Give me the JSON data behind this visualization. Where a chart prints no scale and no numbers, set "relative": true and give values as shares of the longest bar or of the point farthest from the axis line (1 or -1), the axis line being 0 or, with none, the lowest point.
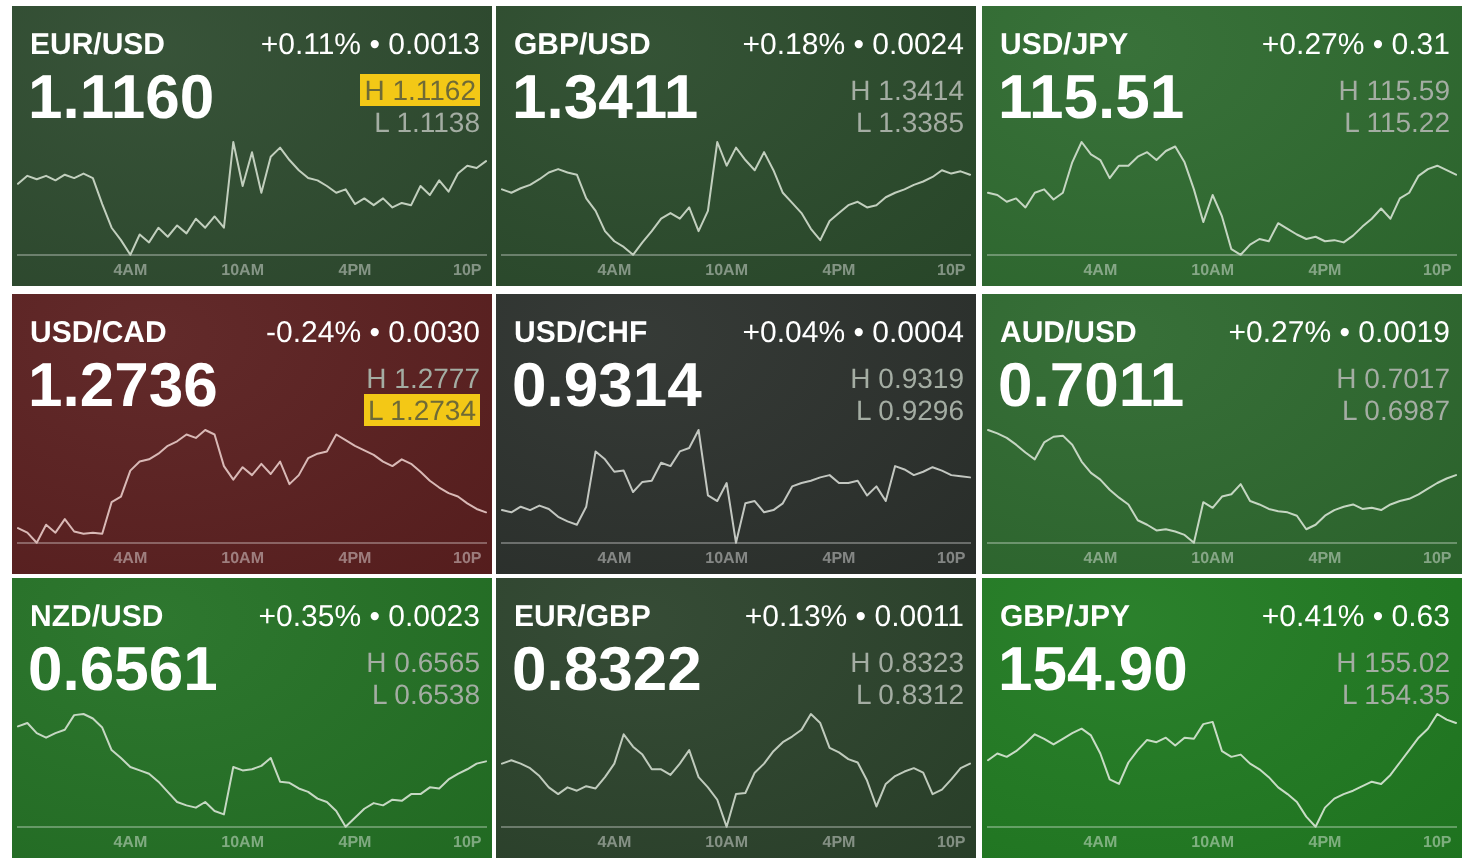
{
  "chart_data": [
    {
      "type": "line",
      "title": "EUR/USD",
      "subtitle": "1.1160",
      "annotations": [
        "+0.11% • 0.0013",
        "H 1.1162",
        "L 1.1138"
      ],
      "relative": true,
      "color": "#c2cfbe",
      "categories": [
        null,
        null,
        null,
        null,
        null,
        null,
        null,
        null,
        null,
        null,
        null,
        null,
        "4AM",
        null,
        null,
        null,
        null,
        null,
        null,
        null,
        null,
        null,
        null,
        null,
        "10AM",
        null,
        null,
        null,
        null,
        null,
        null,
        null,
        null,
        null,
        null,
        null,
        "4PM",
        null,
        null,
        null,
        null,
        null,
        null,
        null,
        null,
        null,
        null,
        null,
        "10P",
        null,
        null
      ],
      "values": [
        0.63,
        0.7,
        0.67,
        0.7,
        0.66,
        0.71,
        0.68,
        0.72,
        0.68,
        0.45,
        0.24,
        0.13,
        0,
        0.18,
        0.11,
        0.24,
        0.16,
        0.26,
        0.19,
        0.32,
        0.24,
        0.34,
        0.24,
        1,
        0.61,
        0.91,
        0.55,
        0.87,
        0.95,
        0.84,
        0.75,
        0.68,
        0.66,
        0.61,
        0.55,
        0.58,
        0.45,
        0.5,
        0.44,
        0.5,
        0.42,
        0.46,
        0.44,
        0.61,
        0.53,
        0.66,
        0.56,
        0.72,
        0.79,
        0.77,
        0.83
      ]
    },
    {
      "type": "line",
      "title": "GBP/USD",
      "subtitle": "1.3411",
      "annotations": [
        "+0.18% • 0.0024",
        "H 1.3414",
        "L 1.3385"
      ],
      "relative": true,
      "color": "#c2cfbe",
      "categories": [
        null,
        null,
        null,
        null,
        null,
        null,
        null,
        null,
        null,
        null,
        null,
        null,
        "4AM",
        null,
        null,
        null,
        null,
        null,
        null,
        null,
        null,
        null,
        null,
        null,
        "10AM",
        null,
        null,
        null,
        null,
        null,
        null,
        null,
        null,
        null,
        null,
        null,
        "4PM",
        null,
        null,
        null,
        null,
        null,
        null,
        null,
        null,
        null,
        null,
        null,
        "10P",
        null,
        null
      ],
      "values": [
        0.58,
        0.55,
        0.59,
        0.62,
        0.67,
        0.73,
        0.76,
        0.73,
        0.71,
        0.5,
        0.39,
        0.21,
        0.12,
        0.07,
        0,
        0.11,
        0.21,
        0.32,
        0.37,
        0.32,
        0.42,
        0.21,
        0.39,
        1,
        0.79,
        0.95,
        0.84,
        0.75,
        0.91,
        0.75,
        0.55,
        0.46,
        0.37,
        0.23,
        0.13,
        0.3,
        0.37,
        0.44,
        0.47,
        0.42,
        0.44,
        0.51,
        0.55,
        0.58,
        0.62,
        0.65,
        0.69,
        0.75,
        0.72,
        0.74,
        0.71
      ]
    },
    {
      "type": "line",
      "title": "USD/JPY",
      "subtitle": "115.51",
      "annotations": [
        "+0.27% • 0.31",
        "H 115.59",
        "L 115.22"
      ],
      "relative": true,
      "color": "#c5d6c2",
      "categories": [
        null,
        null,
        null,
        null,
        null,
        null,
        null,
        null,
        null,
        null,
        null,
        null,
        "4AM",
        null,
        null,
        null,
        null,
        null,
        null,
        null,
        null,
        null,
        null,
        null,
        "10AM",
        null,
        null,
        null,
        null,
        null,
        null,
        null,
        null,
        null,
        null,
        null,
        "4PM",
        null,
        null,
        null,
        null,
        null,
        null,
        null,
        null,
        null,
        null,
        null,
        "10P",
        null,
        null
      ],
      "values": [
        0.55,
        0.53,
        0.47,
        0.5,
        0.42,
        0.55,
        0.58,
        0.49,
        0.55,
        0.82,
        1,
        0.89,
        0.84,
        0.68,
        0.79,
        0.79,
        0.87,
        0.91,
        0.84,
        0.92,
        0.96,
        0.82,
        0.58,
        0.29,
        0.53,
        0.34,
        0.05,
        0,
        0.09,
        0.14,
        0.12,
        0.28,
        0.23,
        0.18,
        0.14,
        0.16,
        0.12,
        0.13,
        0.11,
        0.17,
        0.25,
        0.32,
        0.41,
        0.32,
        0.5,
        0.55,
        0.7,
        0.76,
        0.79,
        0.75,
        0.71
      ]
    },
    {
      "type": "line",
      "title": "USD/CAD",
      "subtitle": "1.2736",
      "annotations": [
        "-0.24% • 0.0030",
        "H 1.2777",
        "L 1.2734"
      ],
      "relative": true,
      "color": "#d9b9b6",
      "categories": [
        null,
        null,
        null,
        null,
        null,
        null,
        null,
        null,
        null,
        null,
        null,
        null,
        "4AM",
        null,
        null,
        null,
        null,
        null,
        null,
        null,
        null,
        null,
        null,
        null,
        "10AM",
        null,
        null,
        null,
        null,
        null,
        null,
        null,
        null,
        null,
        null,
        null,
        "4PM",
        null,
        null,
        null,
        null,
        null,
        null,
        null,
        null,
        null,
        null,
        null,
        "10P",
        null,
        null
      ],
      "values": [
        0.13,
        0.09,
        0,
        0.16,
        0.09,
        0.21,
        0.1,
        0.08,
        0.09,
        0.08,
        0.36,
        0.41,
        0.64,
        0.72,
        0.74,
        0.79,
        0.86,
        0.9,
        0.96,
        0.93,
        1,
        0.96,
        0.68,
        0.56,
        0.67,
        0.6,
        0.7,
        0.61,
        0.72,
        0.52,
        0.6,
        0.75,
        0.79,
        0.81,
        0.96,
        0.91,
        0.86,
        0.82,
        0.78,
        0.72,
        0.68,
        0.74,
        0.7,
        0.63,
        0.55,
        0.49,
        0.44,
        0.41,
        0.35,
        0.3,
        0.27
      ]
    },
    {
      "type": "line",
      "title": "USD/CHF",
      "subtitle": "0.9314",
      "annotations": [
        "+0.04% • 0.0004",
        "H 0.9319",
        "L 0.9296"
      ],
      "relative": true,
      "color": "#c3c7c1",
      "categories": [
        null,
        null,
        null,
        null,
        null,
        null,
        null,
        null,
        null,
        null,
        null,
        null,
        "4AM",
        null,
        null,
        null,
        null,
        null,
        null,
        null,
        null,
        null,
        null,
        null,
        "10AM",
        null,
        null,
        null,
        null,
        null,
        null,
        null,
        null,
        null,
        null,
        null,
        "4PM",
        null,
        null,
        null,
        null,
        null,
        null,
        null,
        null,
        null,
        null,
        null,
        "10P",
        null,
        null
      ],
      "values": [
        0.29,
        0.27,
        0.32,
        0.29,
        0.33,
        0.3,
        0.23,
        0.19,
        0.16,
        0.32,
        0.81,
        0.74,
        0.63,
        0.64,
        0.45,
        0.54,
        0.55,
        0.71,
        0.68,
        0.81,
        0.84,
        1,
        0.42,
        0.37,
        0.53,
        0,
        0.35,
        0.37,
        0.27,
        0.29,
        0.35,
        0.5,
        0.53,
        0.55,
        0.58,
        0.6,
        0.53,
        0.53,
        0.55,
        0.42,
        0.5,
        0.37,
        0.68,
        0.65,
        0.6,
        0.63,
        0.67,
        0.64,
        0.6,
        0.59,
        0.58
      ]
    },
    {
      "type": "line",
      "title": "AUD/USD",
      "subtitle": "0.7011",
      "annotations": [
        "+0.27% • 0.0019",
        "H 0.7017",
        "L 0.6987"
      ],
      "relative": true,
      "color": "#c5d6c2",
      "categories": [
        null,
        null,
        null,
        null,
        null,
        null,
        null,
        null,
        null,
        null,
        null,
        null,
        "4AM",
        null,
        null,
        null,
        null,
        null,
        null,
        null,
        null,
        null,
        null,
        null,
        "10AM",
        null,
        null,
        null,
        null,
        null,
        null,
        null,
        null,
        null,
        null,
        null,
        "4PM",
        null,
        null,
        null,
        null,
        null,
        null,
        null,
        null,
        null,
        null,
        null,
        "10P",
        null,
        null
      ],
      "values": [
        1,
        0.97,
        0.93,
        0.87,
        0.8,
        0.74,
        0.89,
        0.94,
        0.95,
        0.87,
        0.72,
        0.62,
        0.56,
        0.47,
        0.4,
        0.34,
        0.2,
        0.16,
        0.11,
        0.12,
        0.1,
        0.07,
        0,
        0.36,
        0.31,
        0.41,
        0.43,
        0.52,
        0.37,
        0.34,
        0.3,
        0.28,
        0.27,
        0.24,
        0.12,
        0.16,
        0.24,
        0.29,
        0.32,
        0.34,
        0.3,
        0.31,
        0.29,
        0.34,
        0.37,
        0.39,
        0.43,
        0.48,
        0.53,
        0.57,
        0.6
      ]
    },
    {
      "type": "line",
      "title": "NZD/USD",
      "subtitle": "0.6561",
      "annotations": [
        "+0.35% • 0.0023",
        "H 0.6565",
        "L 0.6538"
      ],
      "relative": true,
      "color": "#c6d8c3",
      "categories": [
        null,
        null,
        null,
        null,
        null,
        null,
        null,
        null,
        null,
        null,
        null,
        null,
        "4AM",
        null,
        null,
        null,
        null,
        null,
        null,
        null,
        null,
        null,
        null,
        null,
        "10AM",
        null,
        null,
        null,
        null,
        null,
        null,
        null,
        null,
        null,
        null,
        null,
        "4PM",
        null,
        null,
        null,
        null,
        null,
        null,
        null,
        null,
        null,
        null,
        null,
        "10P",
        null,
        null
      ],
      "values": [
        0.89,
        0.92,
        0.83,
        0.79,
        0.83,
        0.86,
        0.99,
        1,
        0.96,
        0.88,
        0.68,
        0.61,
        0.53,
        0.5,
        0.47,
        0.4,
        0.31,
        0.22,
        0.19,
        0.17,
        0.22,
        0.14,
        0.11,
        0.53,
        0.5,
        0.51,
        0.54,
        0.61,
        0.4,
        0.39,
        0.34,
        0.31,
        0.25,
        0.22,
        0.14,
        0,
        0.08,
        0.16,
        0.21,
        0.19,
        0.24,
        0.23,
        0.29,
        0.29,
        0.35,
        0.34,
        0.42,
        0.47,
        0.51,
        0.56,
        0.58
      ]
    },
    {
      "type": "line",
      "title": "EUR/GBP",
      "subtitle": "0.8322",
      "annotations": [
        "+0.13% • 0.0011",
        "H 0.8323",
        "L 0.8312"
      ],
      "relative": true,
      "color": "#c0cbbd",
      "categories": [
        null,
        null,
        null,
        null,
        null,
        null,
        null,
        null,
        null,
        null,
        null,
        null,
        "4AM",
        null,
        null,
        null,
        null,
        null,
        null,
        null,
        null,
        null,
        null,
        null,
        "10AM",
        null,
        null,
        null,
        null,
        null,
        null,
        null,
        null,
        null,
        null,
        null,
        "4PM",
        null,
        null,
        null,
        null,
        null,
        null,
        null,
        null,
        null,
        null,
        null,
        "10P",
        null,
        null
      ],
      "values": [
        0.56,
        0.59,
        0.56,
        0.52,
        0.45,
        0.35,
        0.29,
        0.35,
        0.32,
        0.36,
        0.34,
        0.44,
        0.56,
        0.82,
        0.71,
        0.64,
        0.51,
        0.51,
        0.46,
        0.56,
        0.68,
        0.44,
        0.35,
        0.24,
        0,
        0.29,
        0.3,
        0.48,
        0.56,
        0.67,
        0.75,
        0.8,
        0.86,
        1,
        0.92,
        0.7,
        0.66,
        0.6,
        0.57,
        0.41,
        0.18,
        0.38,
        0.45,
        0.49,
        0.52,
        0.48,
        0.29,
        0.33,
        0.42,
        0.52,
        0.56
      ]
    },
    {
      "type": "line",
      "title": "GBP/JPY",
      "subtitle": "154.90",
      "annotations": [
        "+0.41% • 0.63",
        "H 155.02",
        "L 154.35"
      ],
      "relative": true,
      "color": "#c8dcc5",
      "categories": [
        null,
        null,
        null,
        null,
        null,
        null,
        null,
        null,
        null,
        null,
        null,
        null,
        "4AM",
        null,
        null,
        null,
        null,
        null,
        null,
        null,
        null,
        null,
        null,
        null,
        "10AM",
        null,
        null,
        null,
        null,
        null,
        null,
        null,
        null,
        null,
        null,
        null,
        "4PM",
        null,
        null,
        null,
        null,
        null,
        null,
        null,
        null,
        null,
        null,
        null,
        "10P",
        null,
        null
      ],
      "values": [
        0.59,
        0.65,
        0.62,
        0.67,
        0.74,
        0.82,
        0.78,
        0.73,
        0.78,
        0.83,
        0.87,
        0.81,
        0.65,
        0.42,
        0.38,
        0.57,
        0.68,
        0.77,
        0.75,
        0.79,
        0.72,
        0.79,
        0.78,
        0.91,
        0.93,
        0.67,
        0.62,
        0.64,
        0.56,
        0.51,
        0.44,
        0.35,
        0.29,
        0.22,
        0.09,
        0,
        0.17,
        0.25,
        0.29,
        0.32,
        0.36,
        0.4,
        0.38,
        0.46,
        0.57,
        0.68,
        0.79,
        0.87,
        1,
        0.95,
        0.92
      ]
    }
  ]
}
